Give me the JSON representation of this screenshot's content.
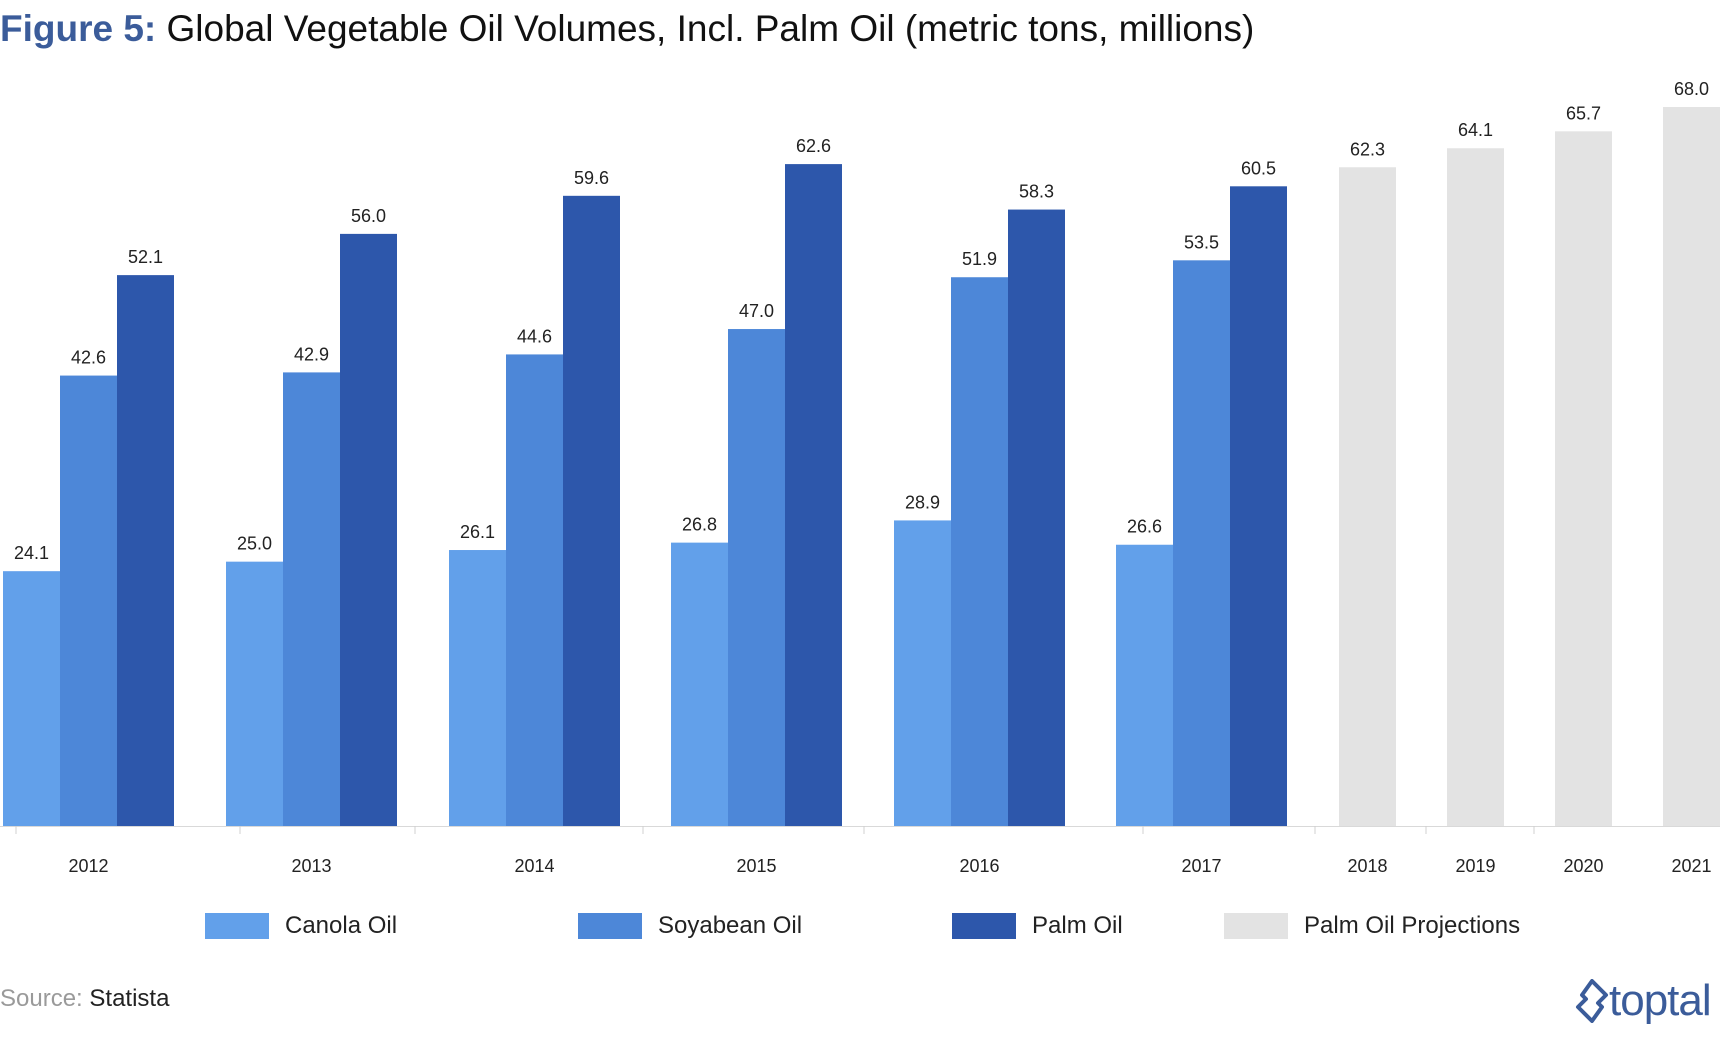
{
  "title": {
    "prefix": "Figure 5:",
    "text": "Global Vegetable Oil Volumes, Incl. Palm Oil (metric tons, millions)"
  },
  "chart_data": {
    "type": "bar",
    "categories": [
      "2012",
      "2013",
      "2014",
      "2015",
      "2016",
      "2017",
      "2018",
      "2019",
      "2020",
      "2021"
    ],
    "series": [
      {
        "name": "Canola Oil",
        "color": "#62a0ea",
        "values": [
          24.1,
          25.0,
          26.1,
          26.8,
          28.9,
          26.6,
          null,
          null,
          null,
          null
        ],
        "labels": [
          "24.1",
          "25.0",
          "26.1",
          "26.8",
          "28.9",
          "26.6",
          null,
          null,
          null,
          null
        ]
      },
      {
        "name": "Soyabean Oil",
        "color": "#4d87d8",
        "values": [
          42.6,
          42.9,
          44.6,
          47.0,
          51.9,
          53.5,
          null,
          null,
          null,
          null
        ],
        "labels": [
          "42.6",
          "42.9",
          "44.6",
          "47.0",
          "51.9",
          "53.5",
          null,
          null,
          null,
          null
        ]
      },
      {
        "name": "Palm Oil",
        "color": "#2d57ab",
        "values": [
          52.1,
          56.0,
          59.6,
          62.6,
          58.3,
          60.5,
          null,
          null,
          null,
          null
        ],
        "labels": [
          "52.1",
          "56.0",
          "59.6",
          "62.6",
          "58.3",
          "60.5",
          null,
          null,
          null,
          null
        ]
      },
      {
        "name": "Palm Oil Projections",
        "color": "#e3e3e3",
        "values": [
          null,
          null,
          null,
          null,
          null,
          null,
          62.3,
          64.1,
          65.7,
          68.0
        ],
        "labels": [
          null,
          null,
          null,
          null,
          null,
          null,
          "62.3",
          "64.1",
          "65.7",
          "68.0"
        ]
      }
    ],
    "ylim": [
      0,
      70
    ],
    "grid": false,
    "legend": "bottom"
  },
  "source": {
    "prefix": "Source:",
    "value": "Statista"
  },
  "logo": {
    "text": "toptal",
    "color": "#3b5c9a"
  }
}
